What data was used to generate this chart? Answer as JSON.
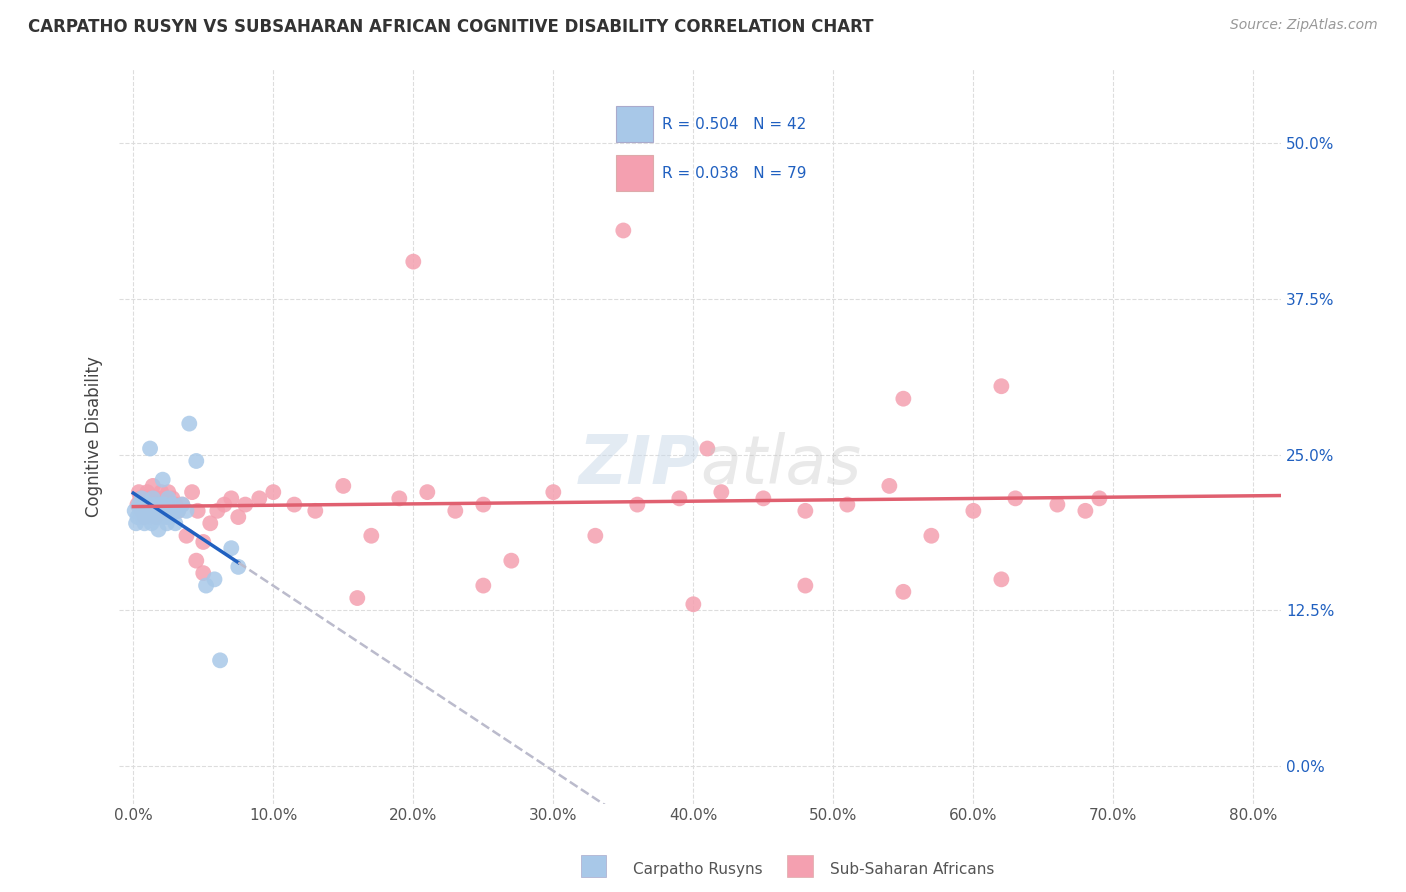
{
  "title": "CARPATHO RUSYN VS SUBSAHARAN AFRICAN COGNITIVE DISABILITY CORRELATION CHART",
  "source": "Source: ZipAtlas.com",
  "xlabel_ticks": [
    0.0,
    10.0,
    20.0,
    30.0,
    40.0,
    50.0,
    60.0,
    70.0,
    80.0
  ],
  "ylabel_ticks": [
    0.0,
    12.5,
    25.0,
    37.5,
    50.0
  ],
  "xlim": [
    -1.0,
    82.0
  ],
  "ylim": [
    -3.0,
    56.0
  ],
  "ylabel": "Cognitive Disability",
  "legend_label1": "Carpatho Rusyns",
  "legend_label2": "Sub-Saharan Africans",
  "R1": "0.504",
  "N1": "42",
  "R2": "0.038",
  "N2": "79",
  "color_blue": "#A8C8E8",
  "color_pink": "#F4A0B0",
  "color_blue_line": "#2060C0",
  "color_pink_line": "#E06070",
  "color_gray_dashed": "#BBBBCC",
  "background_color": "#FFFFFF",
  "grid_color": "#DDDDDD",
  "blue_points_x": [
    0.1,
    0.2,
    0.3,
    0.4,
    0.5,
    0.6,
    0.7,
    0.8,
    0.9,
    1.0,
    1.1,
    1.2,
    1.3,
    1.4,
    1.5,
    1.6,
    1.7,
    1.8,
    1.9,
    2.0,
    2.1,
    2.2,
    2.3,
    2.4,
    2.5,
    2.6,
    2.7,
    2.8,
    2.9,
    3.0,
    3.2,
    3.5,
    3.8,
    4.0,
    4.5,
    5.2,
    5.8,
    6.2,
    7.0,
    7.5,
    1.2,
    2.1
  ],
  "blue_points_y": [
    20.5,
    19.5,
    20.0,
    21.0,
    20.5,
    21.5,
    20.0,
    19.5,
    21.0,
    20.5,
    21.0,
    20.0,
    19.5,
    21.5,
    20.5,
    21.0,
    20.0,
    19.0,
    20.5,
    21.0,
    20.5,
    21.0,
    20.0,
    19.5,
    21.5,
    20.0,
    20.5,
    21.0,
    20.5,
    19.5,
    20.5,
    21.0,
    20.5,
    27.5,
    24.5,
    14.5,
    15.0,
    8.5,
    17.5,
    16.0,
    25.5,
    23.0
  ],
  "pink_points_x": [
    0.3,
    0.4,
    0.5,
    0.6,
    0.7,
    0.8,
    0.9,
    1.0,
    1.1,
    1.2,
    1.3,
    1.4,
    1.5,
    1.6,
    1.7,
    1.8,
    1.9,
    2.0,
    2.1,
    2.2,
    2.3,
    2.4,
    2.5,
    2.6,
    2.7,
    2.8,
    2.9,
    3.0,
    3.2,
    3.5,
    3.8,
    4.2,
    4.6,
    5.0,
    5.5,
    6.0,
    6.5,
    7.0,
    7.5,
    8.0,
    9.0,
    10.0,
    11.5,
    13.0,
    15.0,
    17.0,
    19.0,
    21.0,
    23.0,
    25.0,
    27.0,
    30.0,
    33.0,
    36.0,
    39.0,
    42.0,
    45.0,
    48.0,
    51.0,
    54.0,
    57.0,
    60.0,
    63.0,
    66.0,
    69.0,
    20.0,
    35.0,
    41.0,
    55.0,
    62.0,
    4.5,
    5.0,
    16.0,
    25.0,
    40.0,
    48.0,
    55.0,
    62.0,
    68.0
  ],
  "pink_points_y": [
    21.0,
    22.0,
    21.5,
    20.5,
    21.5,
    20.0,
    21.0,
    22.0,
    21.5,
    20.5,
    21.0,
    22.5,
    21.0,
    20.0,
    21.5,
    20.5,
    21.0,
    22.0,
    21.5,
    20.5,
    21.0,
    21.5,
    22.0,
    21.0,
    20.5,
    21.5,
    20.5,
    21.0,
    20.5,
    21.0,
    18.5,
    22.0,
    20.5,
    18.0,
    19.5,
    20.5,
    21.0,
    21.5,
    20.0,
    21.0,
    21.5,
    22.0,
    21.0,
    20.5,
    22.5,
    18.5,
    21.5,
    22.0,
    20.5,
    21.0,
    16.5,
    22.0,
    18.5,
    21.0,
    21.5,
    22.0,
    21.5,
    20.5,
    21.0,
    22.5,
    18.5,
    20.5,
    21.5,
    21.0,
    21.5,
    40.5,
    43.0,
    25.5,
    29.5,
    30.5,
    16.5,
    15.5,
    13.5,
    14.5,
    13.0,
    14.5,
    14.0,
    15.0,
    20.5
  ]
}
